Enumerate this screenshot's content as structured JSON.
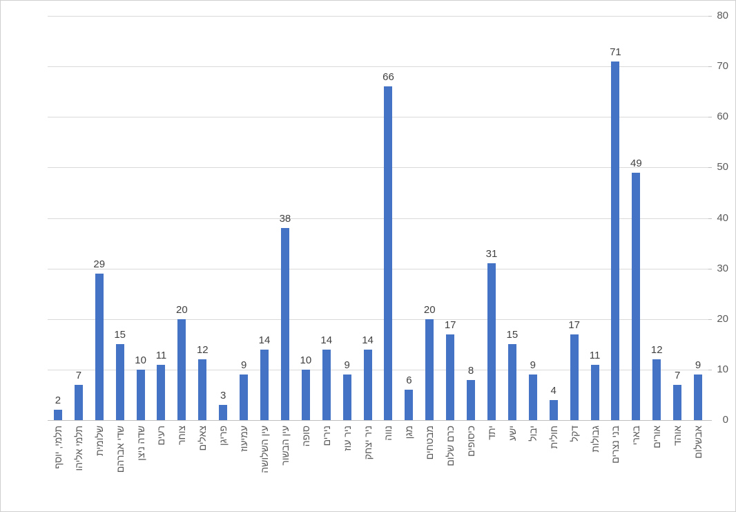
{
  "chart_data": {
    "type": "bar",
    "title": "",
    "categories": [
      "תלמי, יוסף",
      "תלמי אליהו",
      "שלומית",
      "שדי אברהם",
      "שדה ניצן",
      "רעים",
      "צוחר",
      "צאלים",
      "פריגן",
      "עמיעוז",
      "עין השלושה",
      "עין הבשור",
      "סופה",
      "נירים",
      "ניר עוז",
      "ניר יצחק",
      "נווה",
      "מגן",
      "מבטחים",
      "כרם שלום",
      "כיסופים",
      "יתד",
      "ישע",
      "יבול",
      "חולית",
      "דקל",
      "גבולות",
      "בני נצרים",
      "בארי",
      "אורים",
      "אוהד",
      "אבשלום"
    ],
    "values": [
      2,
      7,
      29,
      15,
      10,
      11,
      20,
      12,
      3,
      9,
      14,
      38,
      10,
      14,
      9,
      14,
      66,
      6,
      20,
      17,
      8,
      31,
      15,
      9,
      4,
      17,
      11,
      71,
      49,
      12,
      7,
      9
    ],
    "data_labels": true,
    "xlabel": "",
    "ylabel": "",
    "ylim": [
      0,
      80
    ],
    "yticks": [
      0,
      10,
      20,
      30,
      40,
      50,
      60,
      70,
      80
    ],
    "grid": true,
    "legend": false,
    "axis_side": "right",
    "rtl": true,
    "colors": {
      "bar": "#4472C4",
      "grid": "#D9D9D9",
      "axis": "#BFBFBF",
      "value_label": "#404040",
      "tick_label": "#595959"
    }
  }
}
